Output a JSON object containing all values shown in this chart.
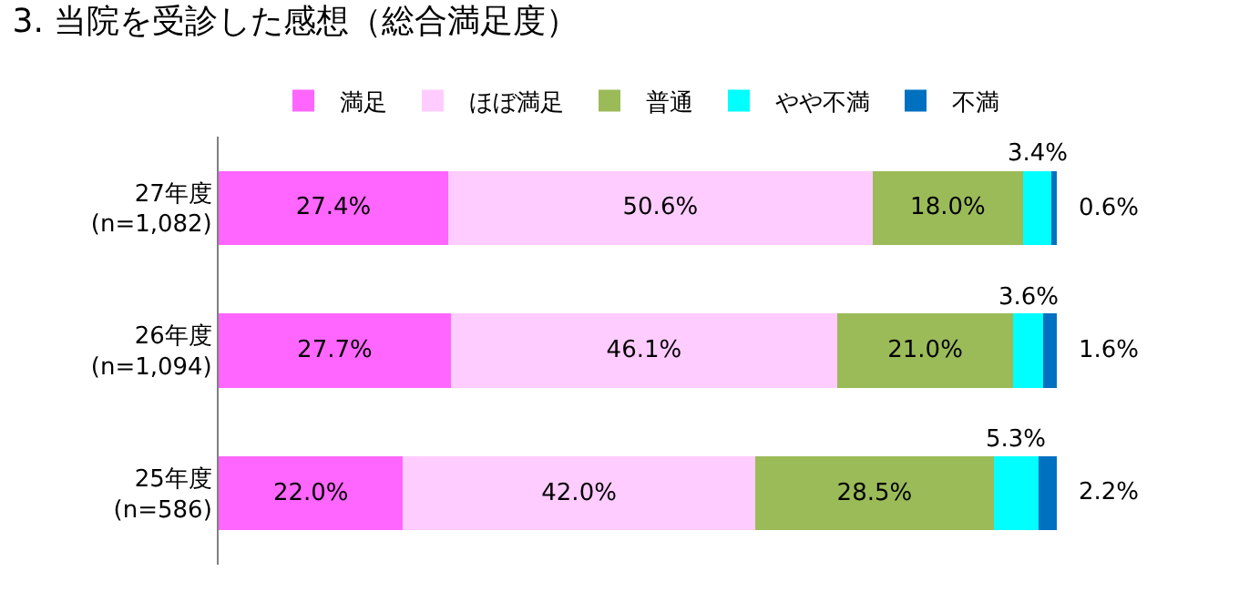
{
  "chart_data": {
    "type": "bar",
    "orientation": "horizontal",
    "stacked": true,
    "title": "3. 当院を受診した感想（総合満足度）",
    "categories": [
      "27年度\n(n=1,082)",
      "26年度\n(n=1,094)",
      "25年度\n(n=586)"
    ],
    "series": [
      {
        "name": "満足",
        "color": "#ff66ff",
        "values": [
          27.4,
          27.7,
          22.0
        ],
        "value_labels": [
          "27.4%",
          "27.7%",
          "22.0%"
        ]
      },
      {
        "name": "ほぼ満足",
        "color": "#ffccff",
        "values": [
          50.6,
          46.1,
          42.0
        ],
        "value_labels": [
          "50.6%",
          "46.1%",
          "42.0%"
        ]
      },
      {
        "name": "普通",
        "color": "#9bbb59",
        "values": [
          18.0,
          21.0,
          28.5
        ],
        "value_labels": [
          "18.0%",
          "21.0%",
          "28.5%"
        ]
      },
      {
        "name": "やや不満",
        "color": "#00ffff",
        "values": [
          3.4,
          3.6,
          5.3
        ],
        "value_labels": [
          "3.4%",
          "3.6%",
          "5.3%"
        ]
      },
      {
        "name": "不満",
        "color": "#0070c0",
        "values": [
          0.6,
          1.6,
          2.2
        ],
        "value_labels": [
          "0.6%",
          "1.6%",
          "2.2%"
        ]
      }
    ],
    "xlim": [
      0,
      100
    ],
    "tick_labels": "y",
    "legend": "top"
  }
}
